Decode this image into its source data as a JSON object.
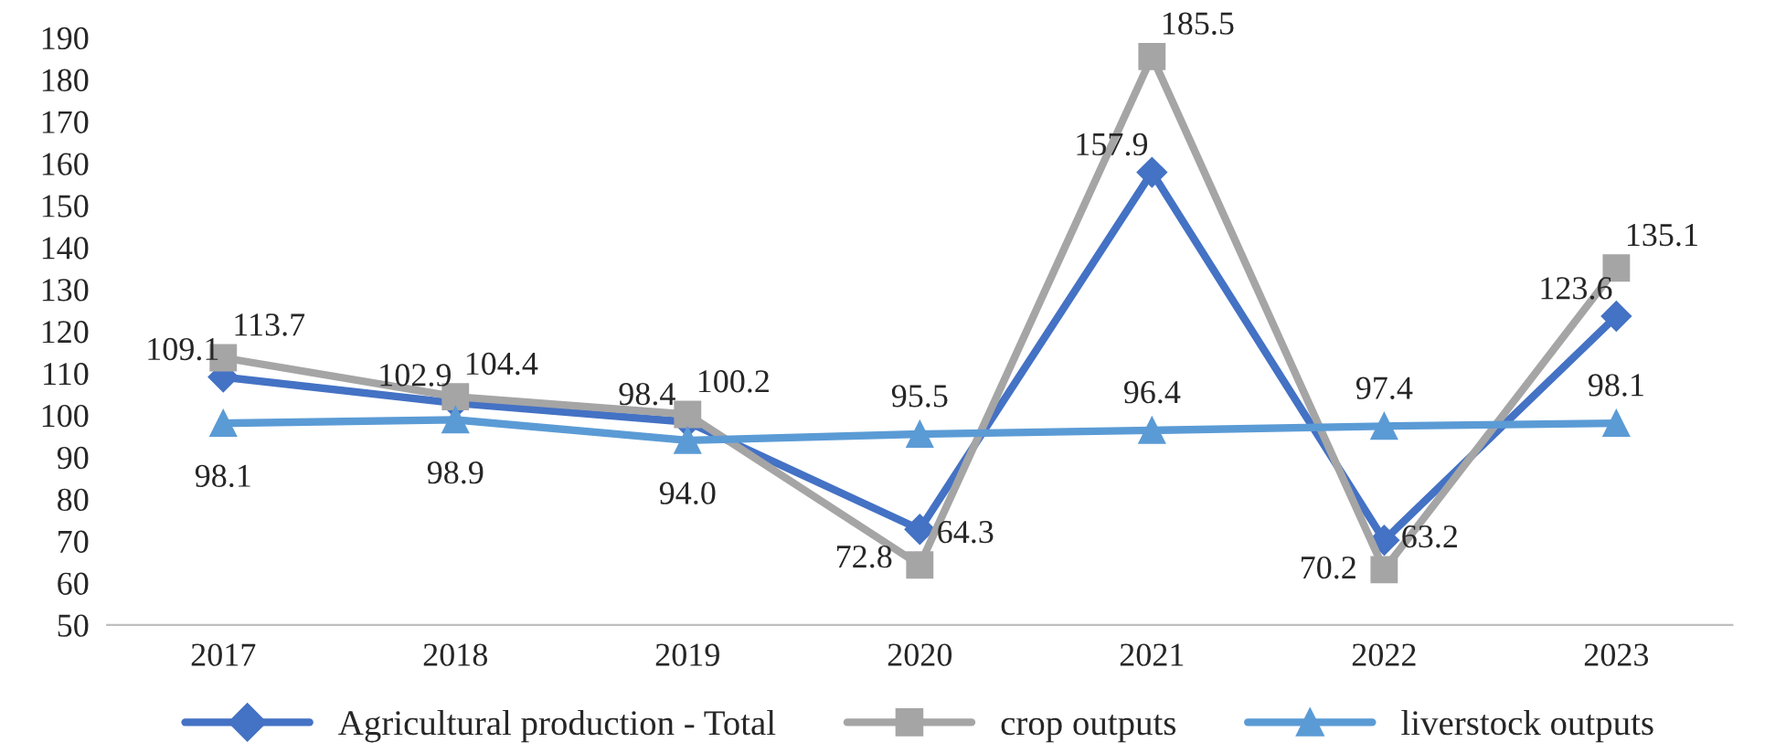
{
  "chart_data": {
    "type": "line",
    "categories": [
      "2017",
      "2018",
      "2019",
      "2020",
      "2021",
      "2022",
      "2023"
    ],
    "series": [
      {
        "name": "Agricultural production - Total",
        "color": "#4472c4",
        "marker": "diamond",
        "values": [
          109.1,
          102.9,
          98.4,
          72.8,
          157.9,
          70.2,
          123.6
        ],
        "value_labels": [
          "109.1",
          "102.9",
          "98.4",
          "72.8",
          "157.9",
          "70.2",
          "123.6"
        ]
      },
      {
        "name": "crop outputs",
        "color": "#a5a5a5",
        "marker": "square",
        "values": [
          113.7,
          104.4,
          100.2,
          64.3,
          185.5,
          63.2,
          135.1
        ],
        "value_labels": [
          "113.7",
          "104.4",
          "100.2",
          "64.3",
          "185.5",
          "63.2",
          "135.1"
        ]
      },
      {
        "name": "liverstock outputs",
        "color": "#5b9bd5",
        "marker": "triangle",
        "values": [
          98.1,
          98.9,
          94.0,
          95.5,
          96.4,
          97.4,
          98.1
        ],
        "value_labels": [
          "98.1",
          "98.9",
          "94.0",
          "95.5",
          "96.4",
          "97.4",
          "98.1"
        ]
      }
    ],
    "ylim": [
      50,
      190
    ],
    "yticks": [
      50,
      60,
      70,
      80,
      90,
      100,
      110,
      120,
      130,
      140,
      150,
      160,
      170,
      180,
      190
    ],
    "grid": false,
    "legend": "bottom",
    "line_style": "solid"
  }
}
